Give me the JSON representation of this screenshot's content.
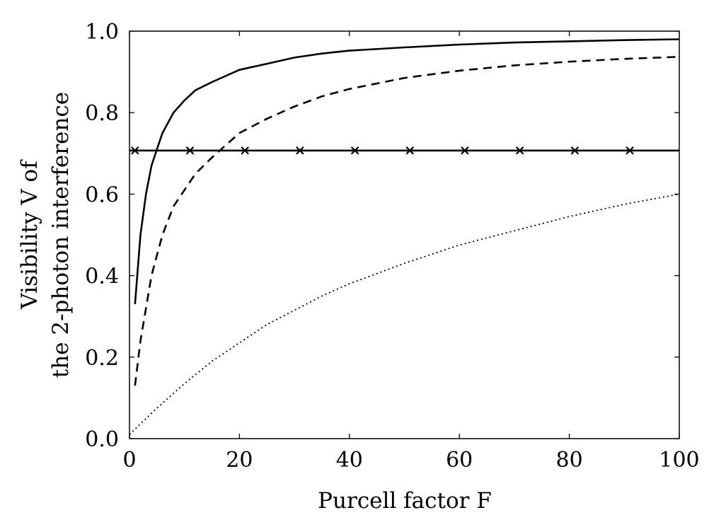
{
  "chart_data": {
    "type": "line",
    "title": "",
    "xlabel": "Purcell factor F",
    "ylabel_lines": [
      "Visibility V of",
      "the 2-photon interference"
    ],
    "xlim": [
      0,
      100
    ],
    "ylim": [
      0,
      1
    ],
    "x_ticks": [
      0,
      20,
      40,
      60,
      80,
      100
    ],
    "x_tick_labels": [
      "0",
      "20",
      "40",
      "60",
      "80",
      "100"
    ],
    "y_ticks": [
      0,
      0.2,
      0.4,
      0.6,
      0.8,
      1
    ],
    "y_tick_labels": [
      "0.0",
      "0.2",
      "0.4",
      "0.6",
      "0.8",
      "1.0"
    ],
    "grid": false,
    "legend": "none",
    "series": [
      {
        "style": "solid",
        "x": [
          1,
          2,
          3,
          4,
          5,
          6,
          8,
          10,
          12,
          15,
          20,
          25,
          30,
          35,
          40,
          50,
          60,
          70,
          80,
          90,
          100
        ],
        "y": [
          0.33,
          0.5,
          0.6,
          0.67,
          0.71,
          0.75,
          0.8,
          0.83,
          0.855,
          0.875,
          0.905,
          0.92,
          0.935,
          0.945,
          0.952,
          0.96,
          0.967,
          0.972,
          0.975,
          0.978,
          0.98
        ]
      },
      {
        "style": "dashed",
        "x": [
          1,
          2,
          3,
          4,
          5,
          6,
          8,
          10,
          12,
          15,
          20,
          25,
          30,
          35,
          40,
          50,
          60,
          70,
          80,
          90,
          100
        ],
        "y": [
          0.13,
          0.24,
          0.32,
          0.4,
          0.45,
          0.5,
          0.57,
          0.61,
          0.65,
          0.69,
          0.75,
          0.785,
          0.815,
          0.84,
          0.858,
          0.885,
          0.903,
          0.916,
          0.925,
          0.932,
          0.937
        ]
      },
      {
        "style": "dotted",
        "x": [
          0,
          5,
          10,
          15,
          20,
          25,
          30,
          35,
          40,
          50,
          60,
          70,
          80,
          90,
          100
        ],
        "y": [
          0.01,
          0.075,
          0.135,
          0.19,
          0.235,
          0.28,
          0.315,
          0.35,
          0.38,
          0.43,
          0.475,
          0.51,
          0.545,
          0.575,
          0.6
        ]
      },
      {
        "style": "solid-cross",
        "x": [
          0,
          100
        ],
        "y": [
          0.707,
          0.707
        ],
        "marker_x": [
          1,
          11,
          21,
          31,
          41,
          51,
          61,
          71,
          81,
          91
        ]
      }
    ]
  }
}
